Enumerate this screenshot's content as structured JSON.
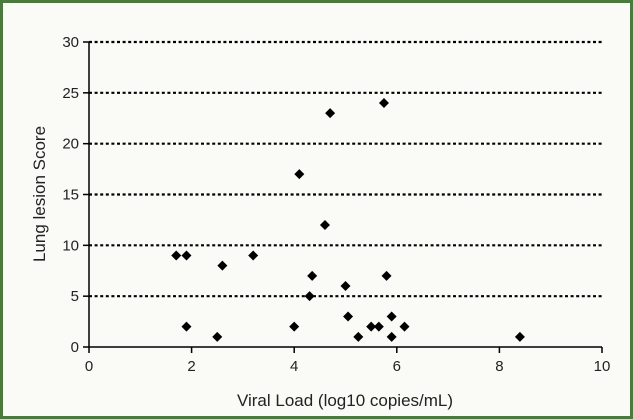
{
  "chart_data": {
    "type": "scatter",
    "title": "",
    "xlabel": "Viral Load (log10 copies/mL)",
    "ylabel": "Lung lesion Score",
    "xlim": [
      0,
      10
    ],
    "ylim": [
      0,
      30
    ],
    "xticks": [
      0,
      2,
      4,
      6,
      8,
      10
    ],
    "yticks": [
      0,
      5,
      10,
      15,
      20,
      25,
      30
    ],
    "grid": "horizontal dotted",
    "marker": "diamond",
    "colors": {
      "marker": "#000000",
      "grid": "#000000",
      "axis": "#000000",
      "frame_border": "#4a7a3d"
    },
    "points": [
      {
        "x": 1.7,
        "y": 9
      },
      {
        "x": 1.9,
        "y": 9
      },
      {
        "x": 1.9,
        "y": 2
      },
      {
        "x": 2.5,
        "y": 1
      },
      {
        "x": 2.6,
        "y": 8
      },
      {
        "x": 3.2,
        "y": 9
      },
      {
        "x": 4.0,
        "y": 2
      },
      {
        "x": 4.1,
        "y": 17
      },
      {
        "x": 4.3,
        "y": 5
      },
      {
        "x": 4.35,
        "y": 7
      },
      {
        "x": 4.6,
        "y": 12
      },
      {
        "x": 4.7,
        "y": 23
      },
      {
        "x": 5.0,
        "y": 6
      },
      {
        "x": 5.05,
        "y": 3
      },
      {
        "x": 5.25,
        "y": 1
      },
      {
        "x": 5.5,
        "y": 2
      },
      {
        "x": 5.65,
        "y": 2
      },
      {
        "x": 5.75,
        "y": 24
      },
      {
        "x": 5.8,
        "y": 7
      },
      {
        "x": 5.9,
        "y": 1
      },
      {
        "x": 5.9,
        "y": 3
      },
      {
        "x": 6.15,
        "y": 2
      },
      {
        "x": 8.4,
        "y": 1
      }
    ]
  }
}
